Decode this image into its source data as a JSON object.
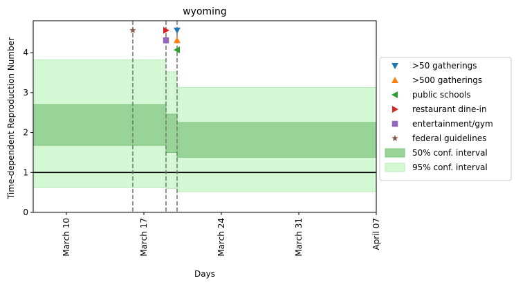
{
  "chart_data": {
    "type": "step-area",
    "title": "wyoming",
    "xlabel": "Days",
    "ylabel": "Time-dependent Reproduction Number",
    "x_axis": {
      "type": "date",
      "range": [
        "2020-03-07",
        "2020-04-07"
      ],
      "ticks": [
        {
          "date": "2020-03-10",
          "label": "March 10"
        },
        {
          "date": "2020-03-17",
          "label": "March 17"
        },
        {
          "date": "2020-03-24",
          "label": "March 24"
        },
        {
          "date": "2020-03-31",
          "label": "March 31"
        },
        {
          "date": "2020-04-07",
          "label": "April 07"
        }
      ]
    },
    "y_axis": {
      "range": [
        0,
        4.8
      ],
      "ticks": [
        "0",
        "1",
        "2",
        "3",
        "4"
      ]
    },
    "reference_line": {
      "y": 1,
      "color": "#000000"
    },
    "intervals": [
      {
        "start": "2020-03-07",
        "end": "2020-03-19",
        "ci50": [
          1.68,
          2.7
        ],
        "ci95": [
          0.62,
          3.82
        ]
      },
      {
        "start": "2020-03-19",
        "end": "2020-03-20",
        "ci50": [
          1.5,
          2.46
        ],
        "ci95": [
          0.6,
          3.52
        ]
      },
      {
        "start": "2020-03-20",
        "end": "2020-04-07",
        "ci50": [
          1.38,
          2.25
        ],
        "ci95": [
          0.52,
          3.13
        ]
      }
    ],
    "events": [
      {
        "name": ">50 gatherings",
        "date": "2020-03-20",
        "y": 4.56,
        "marker": "triangle-down",
        "color": "#1f77b4"
      },
      {
        "name": ">500 gatherings",
        "date": "2020-03-20",
        "y": 4.31,
        "marker": "triangle-up",
        "color": "#ff7f0e"
      },
      {
        "name": "public schools",
        "date": "2020-03-20",
        "y": 4.07,
        "marker": "triangle-left",
        "color": "#2ca02c"
      },
      {
        "name": "restaurant dine-in",
        "date": "2020-03-19",
        "y": 4.56,
        "marker": "triangle-right",
        "color": "#d62728"
      },
      {
        "name": "entertainment/gym",
        "date": "2020-03-19",
        "y": 4.31,
        "marker": "square",
        "color": "#9467bd"
      },
      {
        "name": "federal guidelines",
        "date": "2020-03-16",
        "y": 4.56,
        "marker": "star",
        "color": "#8c564b"
      }
    ],
    "event_lines": [
      "2020-03-16",
      "2020-03-19",
      "2020-03-20"
    ],
    "legend": {
      "placement": "right",
      "entries": [
        {
          "label": ">50 gatherings",
          "marker": "triangle-down",
          "color": "#1f77b4"
        },
        {
          "label": ">500 gatherings",
          "marker": "triangle-up",
          "color": "#ff7f0e"
        },
        {
          "label": "public schools",
          "marker": "triangle-left",
          "color": "#2ca02c"
        },
        {
          "label": "restaurant dine-in",
          "marker": "triangle-right",
          "color": "#d62728"
        },
        {
          "label": "entertainment/gym",
          "marker": "square",
          "color": "#9467bd"
        },
        {
          "label": "federal guidelines",
          "marker": "star",
          "color": "#8c564b"
        },
        {
          "label": "50% conf. interval",
          "marker": "patch",
          "color": "#98d498"
        },
        {
          "label": "95% conf. interval",
          "marker": "patch",
          "color": "#d4f7d4"
        }
      ]
    },
    "colors": {
      "ci50_fill": "#98d498",
      "ci50_edge": "#7cc47c",
      "ci95_fill": "#d4f7d4",
      "ci95_edge": "#b9ecb9",
      "event_line": "#777777"
    },
    "grid": false
  }
}
